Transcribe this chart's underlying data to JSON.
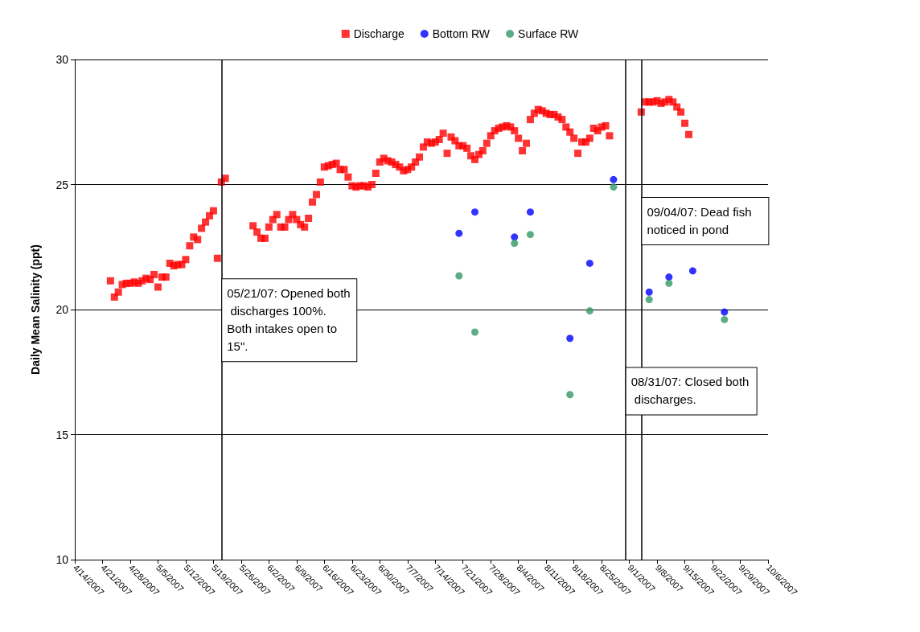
{
  "chart_data": {
    "type": "scatter",
    "ylabel": "Daily Mean Salinity (ppt)",
    "ylim": [
      10,
      30
    ],
    "yticks": [
      10,
      15,
      20,
      25,
      30
    ],
    "xlim": [
      "2007-04-14",
      "2007-10-06"
    ],
    "xticks": [
      {
        "value": "2007-04-14",
        "label": "4/14/2007"
      },
      {
        "value": "2007-04-21",
        "label": "4/21/2007"
      },
      {
        "value": "2007-04-28",
        "label": "4/28/2007"
      },
      {
        "value": "2007-05-05",
        "label": "5/5/2007"
      },
      {
        "value": "2007-05-12",
        "label": "5/12/2007"
      },
      {
        "value": "2007-05-19",
        "label": "5/19/2007"
      },
      {
        "value": "2007-05-26",
        "label": "5/26/2007"
      },
      {
        "value": "2007-06-02",
        "label": "6/2/2007"
      },
      {
        "value": "2007-06-09",
        "label": "6/9/2007"
      },
      {
        "value": "2007-06-16",
        "label": "6/16/2007"
      },
      {
        "value": "2007-06-23",
        "label": "6/23/2007"
      },
      {
        "value": "2007-06-30",
        "label": "6/30/2007"
      },
      {
        "value": "2007-07-07",
        "label": "7/7/2007"
      },
      {
        "value": "2007-07-14",
        "label": "7/14/2007"
      },
      {
        "value": "2007-07-21",
        "label": "7/21/2007"
      },
      {
        "value": "2007-07-28",
        "label": "7/28/2007"
      },
      {
        "value": "2007-08-04",
        "label": "8/4/2007"
      },
      {
        "value": "2007-08-11",
        "label": "8/11/2007"
      },
      {
        "value": "2007-08-18",
        "label": "8/18/2007"
      },
      {
        "value": "2007-08-25",
        "label": "8/25/2007"
      },
      {
        "value": "2007-09-01",
        "label": "9/1/2007"
      },
      {
        "value": "2007-09-08",
        "label": "9/8/2007"
      },
      {
        "value": "2007-09-15",
        "label": "9/15/2007"
      },
      {
        "value": "2007-09-22",
        "label": "9/22/2007"
      },
      {
        "value": "2007-09-29",
        "label": "9/29/2007"
      },
      {
        "value": "2007-10-06",
        "label": "10/6/2007"
      }
    ],
    "grid": "y",
    "legend": "top",
    "series": [
      {
        "name": "Discharge",
        "color": "#ff0000",
        "marker": "square",
        "x": [
          "2007-04-23",
          "2007-04-24",
          "2007-04-25",
          "2007-04-26",
          "2007-04-27",
          "2007-04-28",
          "2007-04-29",
          "2007-04-30",
          "2007-05-01",
          "2007-05-02",
          "2007-05-03",
          "2007-05-04",
          "2007-05-05",
          "2007-05-06",
          "2007-05-07",
          "2007-05-08",
          "2007-05-09",
          "2007-05-10",
          "2007-05-11",
          "2007-05-12",
          "2007-05-13",
          "2007-05-14",
          "2007-05-15",
          "2007-05-16",
          "2007-05-17",
          "2007-05-18",
          "2007-05-19",
          "2007-05-20",
          "2007-05-21",
          "2007-05-22",
          "2007-05-29",
          "2007-05-30",
          "2007-05-31",
          "2007-06-01",
          "2007-06-02",
          "2007-06-03",
          "2007-06-04",
          "2007-06-05",
          "2007-06-06",
          "2007-06-07",
          "2007-06-08",
          "2007-06-09",
          "2007-06-10",
          "2007-06-11",
          "2007-06-12",
          "2007-06-13",
          "2007-06-14",
          "2007-06-15",
          "2007-06-16",
          "2007-06-17",
          "2007-06-18",
          "2007-06-19",
          "2007-06-20",
          "2007-06-21",
          "2007-06-22",
          "2007-06-23",
          "2007-06-24",
          "2007-06-25",
          "2007-06-26",
          "2007-06-27",
          "2007-06-28",
          "2007-06-29",
          "2007-06-30",
          "2007-07-01",
          "2007-07-02",
          "2007-07-03",
          "2007-07-04",
          "2007-07-05",
          "2007-07-06",
          "2007-07-07",
          "2007-07-08",
          "2007-07-09",
          "2007-07-10",
          "2007-07-11",
          "2007-07-12",
          "2007-07-13",
          "2007-07-14",
          "2007-07-15",
          "2007-07-16",
          "2007-07-17",
          "2007-07-18",
          "2007-07-19",
          "2007-07-20",
          "2007-07-21",
          "2007-07-22",
          "2007-07-23",
          "2007-07-24",
          "2007-07-25",
          "2007-07-26",
          "2007-07-27",
          "2007-07-28",
          "2007-07-29",
          "2007-07-30",
          "2007-07-31",
          "2007-08-01",
          "2007-08-02",
          "2007-08-03",
          "2007-08-04",
          "2007-08-05",
          "2007-08-06",
          "2007-08-07",
          "2007-08-08",
          "2007-08-09",
          "2007-08-10",
          "2007-08-11",
          "2007-08-12",
          "2007-08-13",
          "2007-08-14",
          "2007-08-15",
          "2007-08-16",
          "2007-08-17",
          "2007-08-18",
          "2007-08-19",
          "2007-08-20",
          "2007-08-21",
          "2007-08-22",
          "2007-08-23",
          "2007-08-24",
          "2007-08-25",
          "2007-08-26",
          "2007-08-27",
          "2007-09-04",
          "2007-09-05",
          "2007-09-06",
          "2007-09-07",
          "2007-09-08",
          "2007-09-09",
          "2007-09-10",
          "2007-09-11",
          "2007-09-12",
          "2007-09-13",
          "2007-09-14",
          "2007-09-15",
          "2007-09-16"
        ],
        "values": [
          21.15,
          20.5,
          20.7,
          21.0,
          21.05,
          21.05,
          21.1,
          21.05,
          21.15,
          21.25,
          21.2,
          21.4,
          20.9,
          21.3,
          21.3,
          21.85,
          21.75,
          21.8,
          21.8,
          22.0,
          22.55,
          22.9,
          22.8,
          23.25,
          23.5,
          23.75,
          23.95,
          22.05,
          25.1,
          25.25,
          23.35,
          23.1,
          22.85,
          22.85,
          23.3,
          23.6,
          23.8,
          23.3,
          23.3,
          23.6,
          23.8,
          23.6,
          23.4,
          23.3,
          23.65,
          24.3,
          24.6,
          25.1,
          25.7,
          25.75,
          25.8,
          25.85,
          25.6,
          25.6,
          25.3,
          24.95,
          24.9,
          24.95,
          24.95,
          24.9,
          25.0,
          25.45,
          25.9,
          26.05,
          25.95,
          25.9,
          25.8,
          25.7,
          25.55,
          25.6,
          25.7,
          25.9,
          26.1,
          26.5,
          26.7,
          26.65,
          26.7,
          26.8,
          27.05,
          26.25,
          26.9,
          26.75,
          26.55,
          26.55,
          26.45,
          26.15,
          26.0,
          26.2,
          26.35,
          26.65,
          26.95,
          27.15,
          27.25,
          27.3,
          27.35,
          27.3,
          27.15,
          26.85,
          26.35,
          26.65,
          27.6,
          27.85,
          28.0,
          27.95,
          27.85,
          27.8,
          27.8,
          27.7,
          27.6,
          27.3,
          27.1,
          26.85,
          26.25,
          26.7,
          26.7,
          26.85,
          27.25,
          27.15,
          27.3,
          27.35,
          26.95,
          27.9,
          28.3,
          28.3,
          28.3,
          28.35,
          28.25,
          28.3,
          28.4,
          28.3,
          28.1,
          27.9,
          27.45,
          27.0
        ]
      },
      {
        "name": "Bottom RW",
        "color": "#0000ff",
        "marker": "circle",
        "x": [
          "2007-07-20",
          "2007-07-24",
          "2007-08-03",
          "2007-08-07",
          "2007-08-17",
          "2007-08-22",
          "2007-08-28",
          "2007-09-06",
          "2007-09-11",
          "2007-09-17",
          "2007-09-25"
        ],
        "values": [
          23.05,
          23.9,
          22.9,
          23.9,
          18.85,
          21.85,
          25.2,
          20.7,
          21.3,
          21.55,
          19.9
        ]
      },
      {
        "name": "Surface RW",
        "color": "#339966",
        "marker": "circle",
        "x": [
          "2007-07-20",
          "2007-07-24",
          "2007-08-03",
          "2007-08-07",
          "2007-08-17",
          "2007-08-22",
          "2007-08-28",
          "2007-09-06",
          "2007-09-11",
          "2007-09-25"
        ],
        "values": [
          21.35,
          19.1,
          22.65,
          23.0,
          16.6,
          19.95,
          24.9,
          20.4,
          21.05,
          19.6
        ]
      }
    ],
    "ref_lines": [
      {
        "axis": "x",
        "value": "2007-05-21",
        "label": "05/21/07: Opened both discharges 100%.  Both intakes open to 15\"."
      },
      {
        "axis": "x",
        "value": "2007-08-31",
        "label": "08/31/07: Closed both discharges."
      },
      {
        "axis": "x",
        "value": "2007-09-04",
        "label": "09/04/07: Dead fish noticed in pond"
      }
    ]
  }
}
